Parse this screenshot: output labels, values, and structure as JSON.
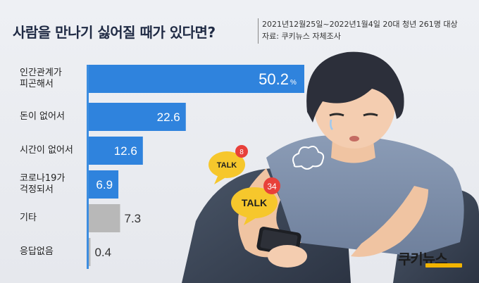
{
  "title": "사람을 만나기 싫어질 때가 있다면?",
  "source": {
    "line1": "2021년12월25일~2022년1월4일  20대 청년 261명 대상",
    "line2": "자료: 쿠키뉴스 자체조사"
  },
  "chart_data": {
    "type": "bar",
    "orientation": "horizontal",
    "title": "사람을 만나기 싫어질 때가 있다면?",
    "categories": [
      "인간관계가 피곤해서",
      "돈이 없어서",
      "시간이 없어서",
      "코로나19가 걱정되서",
      "기타",
      "응답없음"
    ],
    "category_lines": [
      [
        "인간관계가",
        "피곤해서"
      ],
      [
        "돈이 없어서"
      ],
      [
        "시간이 없어서"
      ],
      [
        "코로나19가",
        "걱정되서"
      ],
      [
        "기타"
      ],
      [
        "응답없음"
      ]
    ],
    "values": [
      50.2,
      22.6,
      12.6,
      6.9,
      7.3,
      0.4
    ],
    "value_labels": [
      "50.2",
      "22.6",
      "12.6",
      "6.9",
      "7.3",
      "0.4"
    ],
    "unit": "%",
    "bar_colors": [
      "#2f83dd",
      "#2f83dd",
      "#2f83dd",
      "#2f83dd",
      "#b8b8b8",
      "#b8b8b8"
    ],
    "label_colors": [
      "#ffffff",
      "#ffffff",
      "#ffffff",
      "#ffffff",
      "#333333",
      "#333333"
    ],
    "xlim": [
      0,
      50.2
    ],
    "grid": false,
    "legend": "none"
  },
  "illustration": {
    "bubble_small": {
      "text": "TALK",
      "badge": "8"
    },
    "bubble_large": {
      "text": "TALK",
      "badge": "34"
    }
  },
  "brand": {
    "name": "쿠키뉴스",
    "accent": "#f2b400"
  },
  "colors": {
    "primary_bar": "#2f83dd",
    "other_bar": "#b8b8b8",
    "title": "#1f2a44",
    "badge": "#e8403a",
    "bubble": "#f6c72c"
  }
}
